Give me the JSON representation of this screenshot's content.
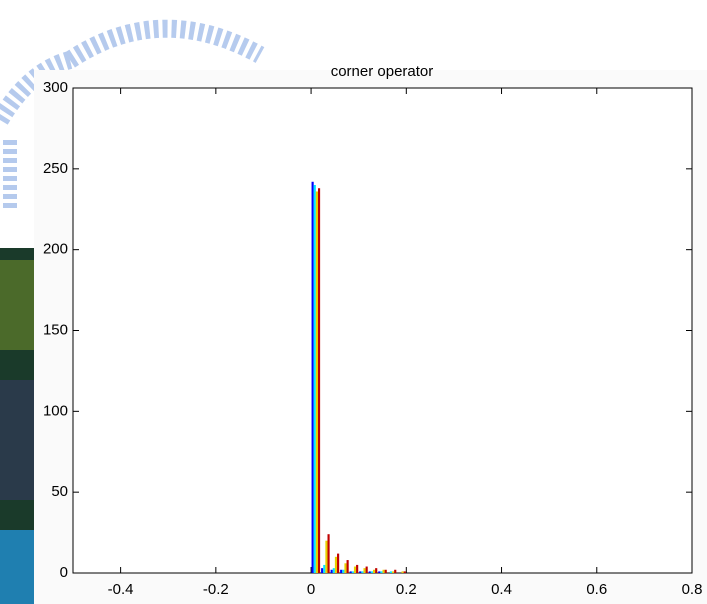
{
  "chart_data": {
    "type": "bar",
    "title": "corner  operator",
    "x": [
      0.01,
      0.03,
      0.05,
      0.07,
      0.09,
      0.11,
      0.13,
      0.15,
      0.17,
      0.19
    ],
    "series": [
      {
        "color": "#0000ff",
        "values": [
          242,
          3,
          2,
          2,
          1,
          1,
          1,
          1,
          0,
          0
        ]
      },
      {
        "color": "#00e5ff",
        "values": [
          240,
          5,
          3,
          2,
          1,
          1,
          1,
          1,
          1,
          0
        ]
      },
      {
        "color": "#e8d000",
        "values": [
          236,
          20,
          10,
          6,
          4,
          3,
          2,
          2,
          1,
          1
        ]
      },
      {
        "color": "#c00000",
        "values": [
          238,
          24,
          12,
          8,
          5,
          4,
          3,
          2,
          2,
          1
        ]
      }
    ],
    "bin_width": 0.02,
    "xlim": [
      -0.5,
      0.8
    ],
    "xticks": [
      -0.4,
      -0.2,
      0,
      0.2,
      0.4,
      0.6,
      0.8
    ],
    "ylim": [
      0,
      300
    ],
    "yticks": [
      0,
      50,
      100,
      150,
      200,
      250,
      300
    ],
    "grid": false
  }
}
